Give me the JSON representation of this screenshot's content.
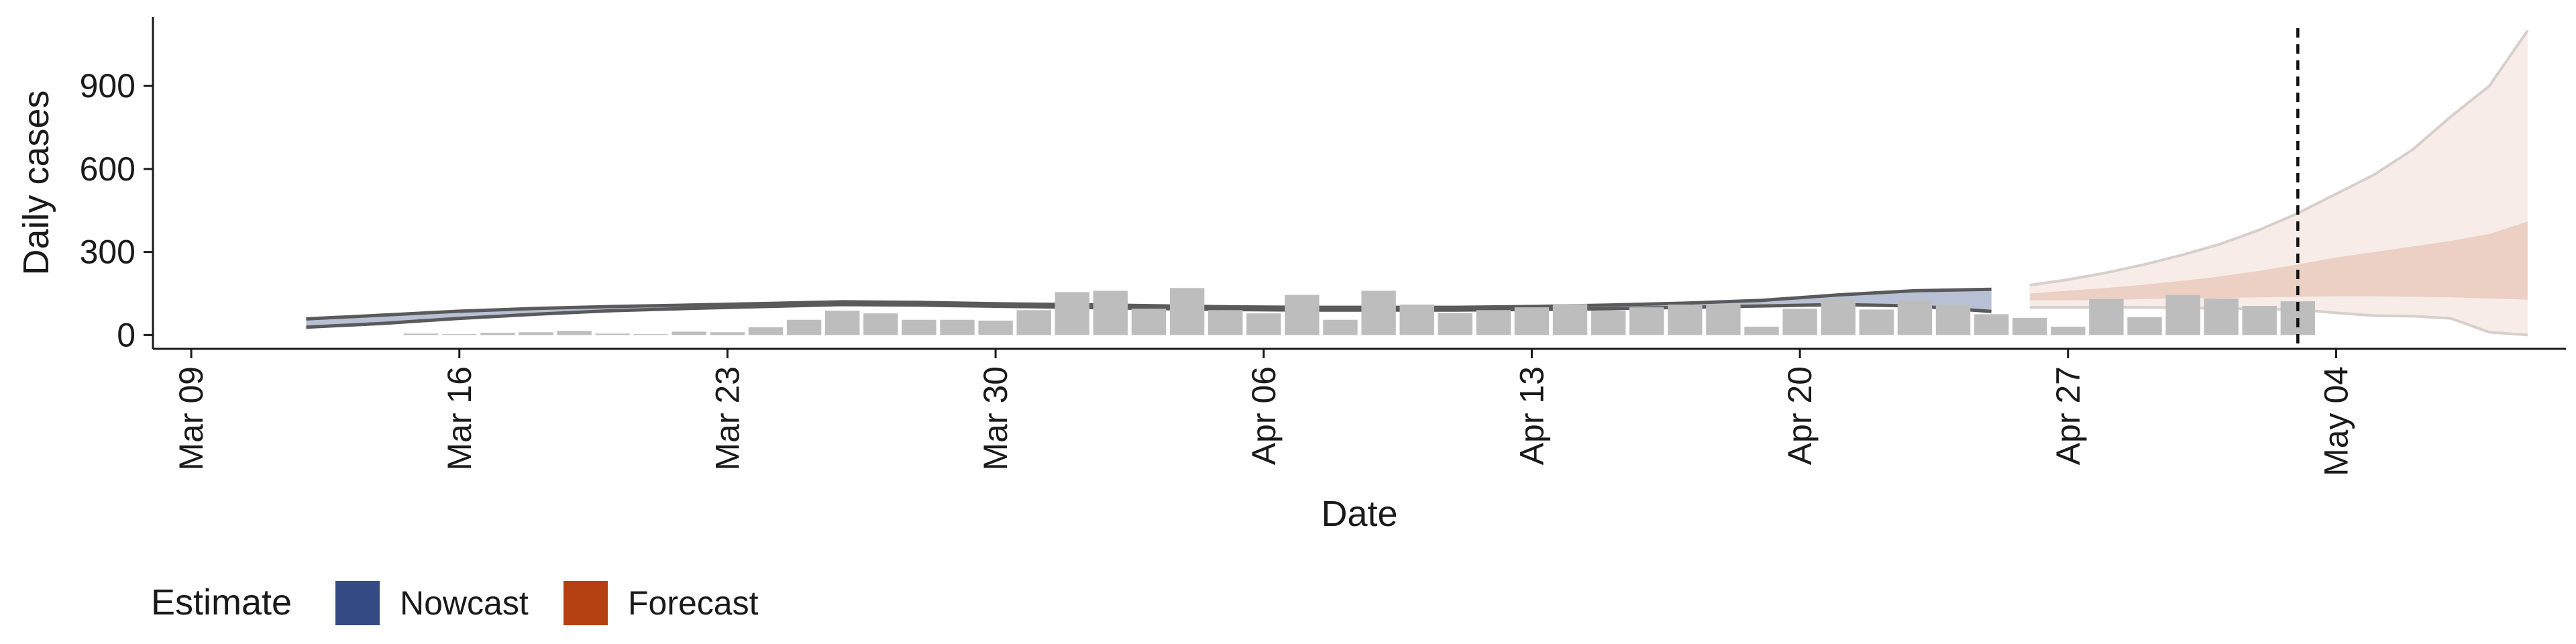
{
  "chart_data": {
    "type": "bar",
    "xlabel": "Date",
    "ylabel": "Daily cases",
    "x_range": [
      "2020-03-08",
      "2020-05-10"
    ],
    "ylim": [
      -50,
      1150
    ],
    "x_ticks": [
      {
        "date": "2020-03-09",
        "label": "Mar 09"
      },
      {
        "date": "2020-03-16",
        "label": "Mar 16"
      },
      {
        "date": "2020-03-23",
        "label": "Mar 23"
      },
      {
        "date": "2020-03-30",
        "label": "Mar 30"
      },
      {
        "date": "2020-04-06",
        "label": "Apr 06"
      },
      {
        "date": "2020-04-13",
        "label": "Apr 13"
      },
      {
        "date": "2020-04-20",
        "label": "Apr 20"
      },
      {
        "date": "2020-04-27",
        "label": "Apr 27"
      },
      {
        "date": "2020-05-04",
        "label": "May 04"
      }
    ],
    "y_ticks": [
      0,
      300,
      600,
      900
    ],
    "grid": false,
    "legend": {
      "title": "Estimate",
      "position": "bottom-left",
      "entries": [
        {
          "label": "Nowcast",
          "color": "#344b86"
        },
        {
          "label": "Forecast",
          "color": "#b5400f"
        }
      ]
    },
    "vline_date": "2020-05-03",
    "bars": {
      "color": "#bdbdbd",
      "dates": [
        "2020-03-15",
        "2020-03-16",
        "2020-03-17",
        "2020-03-18",
        "2020-03-19",
        "2020-03-20",
        "2020-03-21",
        "2020-03-22",
        "2020-03-23",
        "2020-03-24",
        "2020-03-25",
        "2020-03-26",
        "2020-03-27",
        "2020-03-28",
        "2020-03-29",
        "2020-03-30",
        "2020-03-31",
        "2020-04-01",
        "2020-04-02",
        "2020-04-03",
        "2020-04-04",
        "2020-04-05",
        "2020-04-06",
        "2020-04-07",
        "2020-04-08",
        "2020-04-09",
        "2020-04-10",
        "2020-04-11",
        "2020-04-12",
        "2020-04-13",
        "2020-04-14",
        "2020-04-15",
        "2020-04-16",
        "2020-04-17",
        "2020-04-18",
        "2020-04-19",
        "2020-04-20",
        "2020-04-21",
        "2020-04-22",
        "2020-04-23",
        "2020-04-24",
        "2020-04-25",
        "2020-04-26",
        "2020-04-27",
        "2020-04-28",
        "2020-04-29",
        "2020-04-30",
        "2020-05-01",
        "2020-05-02",
        "2020-05-03"
      ],
      "values": [
        5,
        3,
        8,
        10,
        15,
        5,
        3,
        12,
        10,
        28,
        55,
        88,
        78,
        55,
        55,
        52,
        90,
        155,
        160,
        95,
        170,
        90,
        78,
        145,
        55,
        160,
        110,
        80,
        90,
        100,
        112,
        88,
        100,
        110,
        112,
        30,
        95,
        130,
        92,
        125,
        110,
        75,
        62,
        30,
        130,
        65,
        145,
        132,
        105,
        122
      ]
    },
    "nowcast": {
      "dates": [
        "2020-03-12",
        "2020-03-14",
        "2020-03-16",
        "2020-03-18",
        "2020-03-20",
        "2020-03-22",
        "2020-03-24",
        "2020-03-26",
        "2020-03-28",
        "2020-03-30",
        "2020-04-01",
        "2020-04-03",
        "2020-04-05",
        "2020-04-07",
        "2020-04-09",
        "2020-04-11",
        "2020-04-13",
        "2020-04-15",
        "2020-04-17",
        "2020-04-19",
        "2020-04-21",
        "2020-04-23",
        "2020-04-25"
      ],
      "lower": [
        28,
        42,
        60,
        75,
        88,
        96,
        103,
        110,
        108,
        104,
        100,
        96,
        92,
        90,
        90,
        90,
        92,
        95,
        100,
        105,
        110,
        105,
        85
      ],
      "upper": [
        58,
        72,
        86,
        96,
        103,
        108,
        114,
        120,
        118,
        113,
        110,
        106,
        102,
        100,
        100,
        100,
        103,
        108,
        115,
        125,
        145,
        160,
        165
      ]
    },
    "forecast": {
      "dates": [
        "2020-04-26",
        "2020-04-27",
        "2020-04-28",
        "2020-04-29",
        "2020-04-30",
        "2020-05-01",
        "2020-05-02",
        "2020-05-03",
        "2020-05-04",
        "2020-05-05",
        "2020-05-06",
        "2020-05-07",
        "2020-05-08",
        "2020-05-09"
      ],
      "outer_lower": [
        100,
        100,
        100,
        100,
        98,
        96,
        94,
        92,
        80,
        70,
        68,
        60,
        10,
        0
      ],
      "outer_upper": [
        180,
        200,
        225,
        255,
        290,
        330,
        380,
        440,
        510,
        580,
        670,
        790,
        900,
        1100
      ],
      "inner_lower": [
        125,
        125,
        127,
        130,
        132,
        134,
        136,
        138,
        140,
        140,
        138,
        136,
        132,
        128
      ],
      "inner_upper": [
        150,
        160,
        170,
        182,
        196,
        212,
        232,
        255,
        280,
        300,
        320,
        340,
        365,
        410
      ]
    }
  }
}
